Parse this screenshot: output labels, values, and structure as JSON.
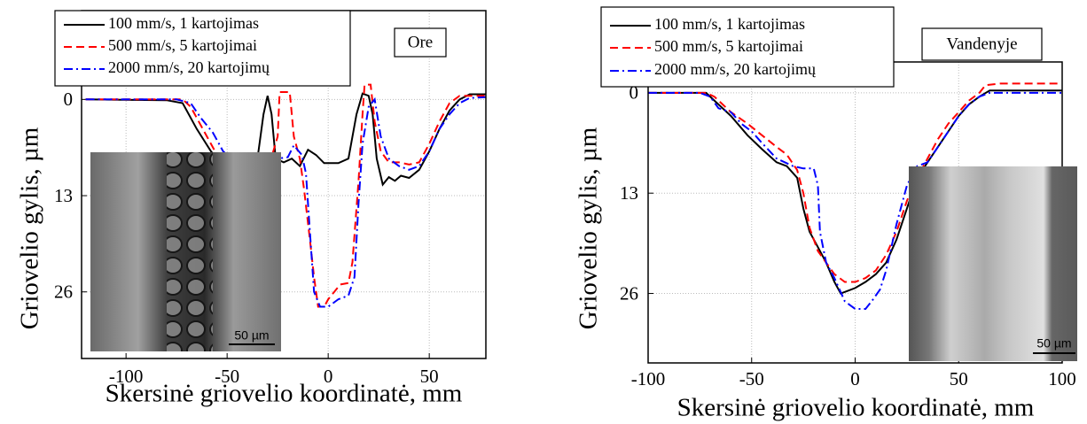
{
  "chart_data": [
    {
      "type": "line",
      "title": "Ore",
      "xlabel": "Skersinė griovelio koordinatė, mm",
      "ylabel": "Griovelio gylis, µm",
      "xlim": [
        -122,
        78
      ],
      "ylim": [
        -12,
        35
      ],
      "y_inverted": true,
      "xticks": [
        -100,
        -50,
        0,
        50
      ],
      "yticks": [
        0,
        13,
        26
      ],
      "grid": true,
      "inset_label": "50 µm",
      "series": [
        {
          "name": "100 mm/s, 1 kartojimas",
          "color": "#000000",
          "dash": "solid",
          "x": [
            -120,
            -80,
            -72,
            -65,
            -58,
            -52,
            -45,
            -40,
            -35,
            -32,
            -30,
            -28,
            -26,
            -22,
            -18,
            -14,
            -10,
            -6,
            -2,
            5,
            10,
            14,
            17,
            20,
            22,
            24,
            27,
            30,
            33,
            36,
            40,
            45,
            50,
            55,
            60,
            65,
            70,
            78
          ],
          "values": [
            0,
            0.1,
            0.5,
            4,
            7,
            9,
            9,
            9,
            8,
            2,
            -0.5,
            2,
            8,
            8.5,
            8,
            9,
            6.8,
            7.5,
            8.6,
            8.6,
            8,
            2,
            -0.8,
            -0.5,
            2,
            8,
            11.5,
            10.5,
            11,
            10.3,
            10.6,
            9.5,
            7,
            4,
            1.5,
            0,
            -0.7,
            -0.7
          ]
        },
        {
          "name": "500 mm/s, 5 kartojimai",
          "color": "#ff0000",
          "dash": "dashed",
          "x": [
            -120,
            -72,
            -68,
            -62,
            -55,
            -48,
            -40,
            -32,
            -28,
            -25,
            -24,
            -22,
            -19,
            -17,
            -14,
            -12,
            -9,
            -7,
            -5,
            -2,
            0,
            3,
            6,
            10,
            12,
            15,
            17,
            18,
            21,
            23,
            26,
            30,
            35,
            40,
            45,
            50,
            55,
            60,
            65,
            78
          ],
          "values": [
            0,
            0,
            1,
            4,
            7.5,
            8,
            8.5,
            8.2,
            7.8,
            5,
            -1,
            -1,
            -1,
            5,
            8,
            12,
            19,
            24,
            28,
            28,
            27,
            26,
            25,
            24.8,
            22,
            11,
            2,
            -2,
            -2,
            3,
            7,
            8.5,
            8.5,
            8.8,
            8.5,
            6,
            3,
            0.5,
            -0.5,
            -0.5
          ]
        },
        {
          "name": "2000 mm/s, 20 kartojimų",
          "color": "#0000ff",
          "dash": "dashdot",
          "x": [
            -120,
            -75,
            -68,
            -63,
            -57,
            -52,
            -48,
            -42,
            -35,
            -25,
            -20,
            -17,
            -13,
            -11,
            -9,
            -7,
            -4,
            0,
            5,
            10,
            13,
            15,
            17,
            20,
            23,
            26,
            30,
            35,
            40,
            45,
            50,
            55,
            60,
            65,
            70,
            78
          ],
          "values": [
            0,
            0,
            0.5,
            2.5,
            4.5,
            7,
            8,
            8.3,
            8,
            8,
            7.8,
            6.2,
            7.5,
            10,
            18,
            26,
            28,
            28,
            27,
            26.5,
            24,
            14,
            6,
            1,
            0,
            5,
            8,
            9,
            9.5,
            9,
            7,
            4,
            2,
            0.5,
            -0.2,
            -0.3
          ]
        }
      ]
    },
    {
      "type": "line",
      "title": "Vandenyje",
      "xlabel": "Skersinė griovelio koordinatė, mm",
      "ylabel": "Griovelio gylis, µm",
      "xlim": [
        -100,
        100
      ],
      "ylim": [
        -4,
        35
      ],
      "y_inverted": true,
      "xticks": [
        -100,
        -50,
        0,
        50,
        100
      ],
      "yticks": [
        0,
        13,
        26
      ],
      "grid": true,
      "inset_label": "50 µm",
      "series": [
        {
          "name": "100 mm/s, 1 kartojimas",
          "color": "#000000",
          "dash": "solid",
          "x": [
            -100,
            -72,
            -68,
            -60,
            -52,
            -45,
            -38,
            -33,
            -28,
            -25,
            -22,
            -18,
            -14,
            -10,
            -7,
            -4,
            0,
            5,
            10,
            15,
            20,
            25,
            30,
            35,
            40,
            45,
            50,
            55,
            60,
            65,
            70,
            100
          ],
          "values": [
            0,
            0,
            1,
            3,
            5.5,
            7.3,
            9,
            9.5,
            11,
            15,
            18,
            20,
            22,
            24.5,
            26,
            25.7,
            25.3,
            24.5,
            23.5,
            22,
            19,
            15,
            11,
            9,
            7,
            5,
            3,
            1.5,
            0.5,
            -0.3,
            -0.3,
            -0.3
          ]
        },
        {
          "name": "500 mm/s, 5 kartojimai",
          "color": "#ff0000",
          "dash": "dashed",
          "x": [
            -100,
            -72,
            -68,
            -60,
            -52,
            -45,
            -38,
            -33,
            -28,
            -25,
            -22,
            -18,
            -14,
            -10,
            -5,
            0,
            5,
            10,
            15,
            20,
            25,
            30,
            35,
            40,
            45,
            50,
            55,
            60,
            63,
            70,
            100
          ],
          "values": [
            0,
            0,
            0.5,
            2.5,
            4,
            5.5,
            7,
            8,
            10,
            13,
            17.5,
            20.5,
            22,
            23.5,
            24.5,
            24.5,
            24,
            23,
            21,
            18,
            14,
            11,
            8.5,
            6,
            4,
            2.5,
            1,
            0,
            -1,
            -1.2,
            -1.2
          ]
        },
        {
          "name": "2000 mm/s, 20 kartojimų",
          "color": "#0000ff",
          "dash": "dashdot",
          "x": [
            -100,
            -75,
            -70,
            -66,
            -60,
            -55,
            -50,
            -45,
            -38,
            -30,
            -25,
            -20,
            -18,
            -17,
            -14,
            -10,
            -5,
            0,
            5,
            8,
            12,
            15,
            20,
            25,
            30,
            35,
            40,
            45,
            50,
            55,
            60,
            65,
            100
          ],
          "values": [
            0,
            0,
            0.5,
            2,
            2.5,
            4,
            5,
            6.5,
            8.5,
            9.5,
            9.8,
            9.8,
            12,
            18,
            22,
            24,
            27,
            28,
            28,
            27,
            25.5,
            23,
            17,
            12,
            9.5,
            9,
            7,
            5,
            3,
            1.5,
            0.5,
            0,
            0
          ]
        }
      ]
    }
  ]
}
